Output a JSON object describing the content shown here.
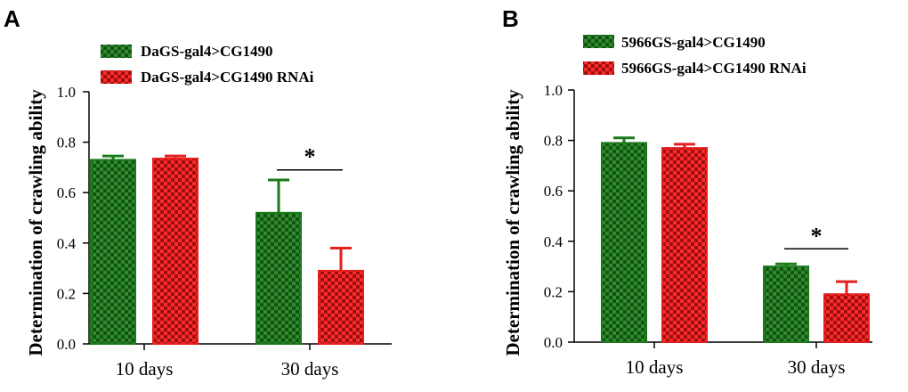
{
  "colors": {
    "green": "#2e8b2e",
    "green_dark": "#145214",
    "green_edge": "#1a7a1a",
    "red": "#ff2a2a",
    "red_dark": "#991010",
    "red_edge": "#e61e1e"
  },
  "chart_data": [
    {
      "panel": "A",
      "type": "bar",
      "ylabel": "Determination of crawling ability",
      "xlabel": "",
      "ylim": [
        0,
        1.0
      ],
      "yticks": [
        "0.0",
        "0.2",
        "0.4",
        "0.6",
        "0.8",
        "1.0"
      ],
      "categories": [
        "10 days",
        "30 days"
      ],
      "legend_position": "top-left",
      "series": [
        {
          "name": "DaGS-gal4>CG1490",
          "color": "green",
          "values": [
            0.73,
            0.52
          ],
          "errors": [
            0.015,
            0.13
          ]
        },
        {
          "name": "DaGS-gal4>CG1490 RNAi",
          "color": "red",
          "values": [
            0.735,
            0.29
          ],
          "errors": [
            0.01,
            0.09
          ]
        }
      ],
      "annotations": [
        {
          "text": "*",
          "category": "30 days",
          "y": 0.69
        }
      ]
    },
    {
      "panel": "B",
      "type": "bar",
      "ylabel": "Determination of crawling ability",
      "xlabel": "",
      "ylim": [
        0,
        1.0
      ],
      "yticks": [
        "0.0",
        "0.2",
        "0.4",
        "0.6",
        "0.8",
        "1.0"
      ],
      "categories": [
        "10 days",
        "30 days"
      ],
      "legend_position": "top-left",
      "series": [
        {
          "name": "5966GS-gal4>CG1490",
          "color": "green",
          "values": [
            0.79,
            0.3
          ],
          "errors": [
            0.02,
            0.01
          ]
        },
        {
          "name": "5966GS-gal4>CG1490 RNAi",
          "color": "red",
          "values": [
            0.77,
            0.19
          ],
          "errors": [
            0.015,
            0.05
          ]
        }
      ],
      "annotations": [
        {
          "text": "*",
          "category": "30 days",
          "y": 0.37
        }
      ]
    }
  ]
}
